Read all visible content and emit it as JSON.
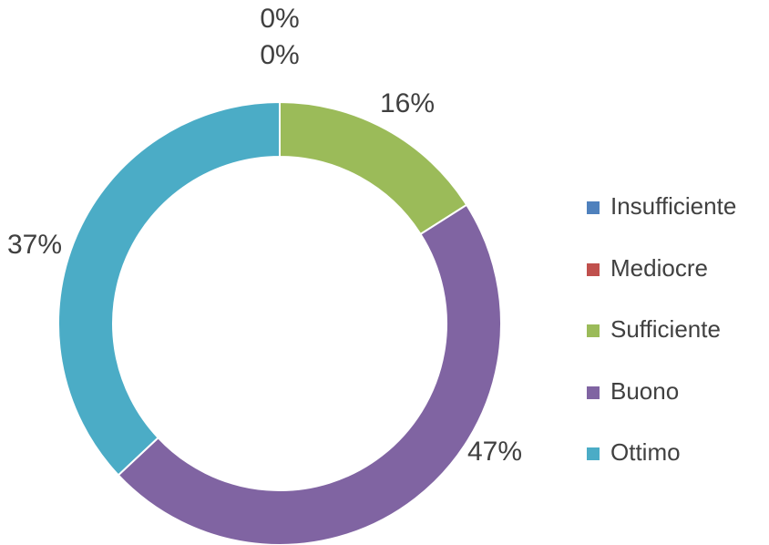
{
  "chart_data": {
    "type": "donut",
    "categories": [
      "Insufficiente",
      "Mediocre",
      "Sufficiente",
      "Buono",
      "Ottimo"
    ],
    "values": [
      0,
      0,
      16,
      47,
      37
    ],
    "value_labels": [
      "0%",
      "0%",
      "16%",
      "47%",
      "37%"
    ],
    "colors": [
      "#4f81bd",
      "#c0504d",
      "#9bbb59",
      "#8064a2",
      "#4bacc6"
    ],
    "legend": "right"
  }
}
